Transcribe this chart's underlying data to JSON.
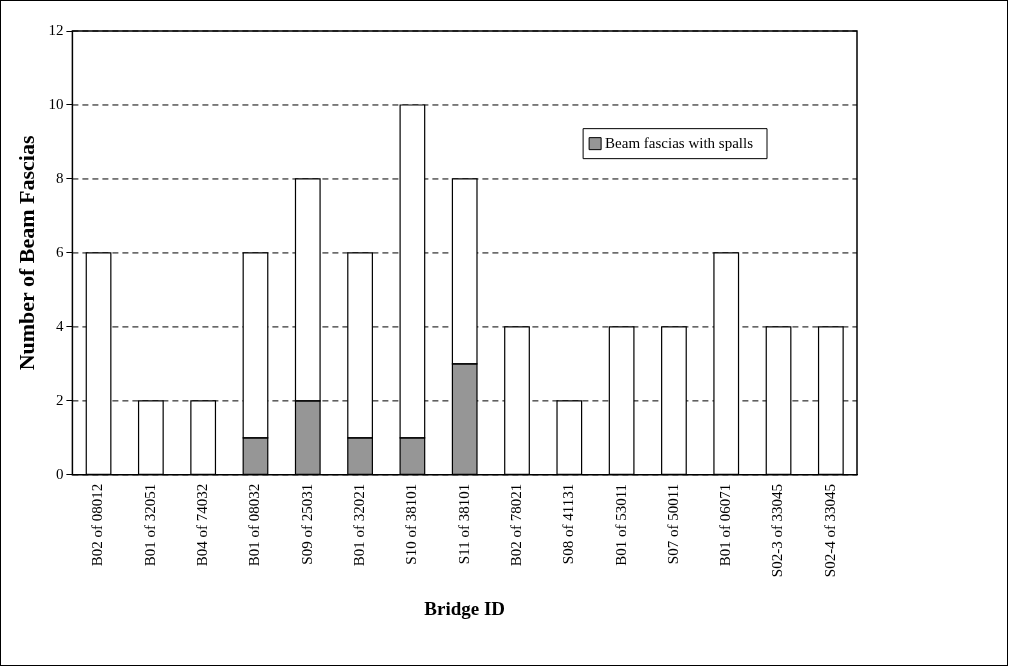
{
  "chart_data": {
    "type": "bar",
    "stacked": true,
    "xlabel": "Bridge ID",
    "ylabel": "Number of Beam Fascias",
    "categories": [
      "B02 of 08012",
      "B01 of 32051",
      "B04 of 74032",
      "B01 of 08032",
      "S09 of 25031",
      "B01 of 32021",
      "S10 of 38101",
      "S11 of 38101",
      "B02 of 78021",
      "S08 of 41131",
      "B01 of 53011",
      "S07 of 50011",
      "B01 of 06071",
      "S02-3 of 33045",
      "S02-4 of 33045"
    ],
    "series": [
      {
        "name": "Beam fascias with spalls",
        "color": "#969696",
        "values": [
          0,
          0,
          0,
          1,
          2,
          1,
          1,
          3,
          0,
          0,
          0,
          0,
          0,
          0,
          0
        ]
      },
      {
        "color": "#ffffff",
        "values": [
          6,
          2,
          2,
          5,
          6,
          5,
          9,
          5,
          4,
          2,
          4,
          4,
          6,
          4,
          4
        ]
      }
    ],
    "ylim": [
      0,
      12
    ],
    "yticks": [
      0,
      2,
      4,
      6,
      8,
      10,
      12
    ],
    "grid": "y",
    "legend": "top right"
  }
}
